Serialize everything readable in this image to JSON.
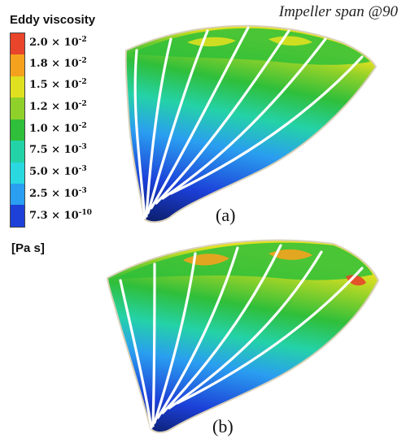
{
  "legend": {
    "title": "Eddy viscosity",
    "units": "[Pa s]",
    "ticks": [
      {
        "mantissa": "2.0 × 10",
        "exp": "-2",
        "color": "#e8452a"
      },
      {
        "mantissa": "1.8 × 10",
        "exp": "-2",
        "color": "#f4a21e"
      },
      {
        "mantissa": "1.5 × 10",
        "exp": "-2",
        "color": "#dfe020"
      },
      {
        "mantissa": "1.2 × 10",
        "exp": "-2",
        "color": "#8fd12a"
      },
      {
        "mantissa": "1.0 × 10",
        "exp": "-2",
        "color": "#2fbf3a"
      },
      {
        "mantissa": "7.5 × 10",
        "exp": "-3",
        "color": "#24d2a8"
      },
      {
        "mantissa": "5.0 × 10",
        "exp": "-3",
        "color": "#2ad8e0"
      },
      {
        "mantissa": "2.5 × 10",
        "exp": "-3",
        "color": "#2a9ef0"
      },
      {
        "mantissa": "7.3 × 10",
        "exp": "-10",
        "color": "#1c40d8"
      }
    ]
  },
  "annotation": "Impeller span @90",
  "panels": [
    {
      "label": "(a)"
    },
    {
      "label": "(b)"
    }
  ]
}
